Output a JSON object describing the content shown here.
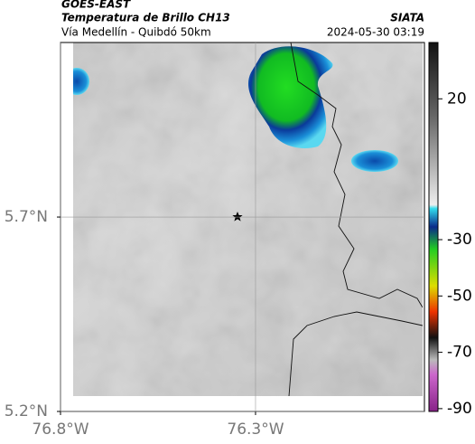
{
  "header": {
    "title": "GOES-EAST",
    "subtitle": "Temperatura de Brillo CH13",
    "route": "Vía Medellín - Quibdó 50km",
    "source": "SIATA",
    "timestamp": "2024-05-30 03:19"
  },
  "map": {
    "xlim": [
      -76.8,
      -75.867
    ],
    "ylim": [
      5.2,
      6.149
    ],
    "xticks": [
      {
        "value": -76.8,
        "label": "76.8°W"
      },
      {
        "value": -76.3,
        "label": "76.3°W"
      }
    ],
    "yticks": [
      {
        "value": 5.2,
        "label": "5.2°N"
      },
      {
        "value": 5.7,
        "label": "5.7°N"
      }
    ]
  },
  "colorbar": {
    "lim": [
      -91,
      40
    ],
    "ticks": [
      20,
      -30,
      -50,
      -70,
      -90
    ]
  }
}
